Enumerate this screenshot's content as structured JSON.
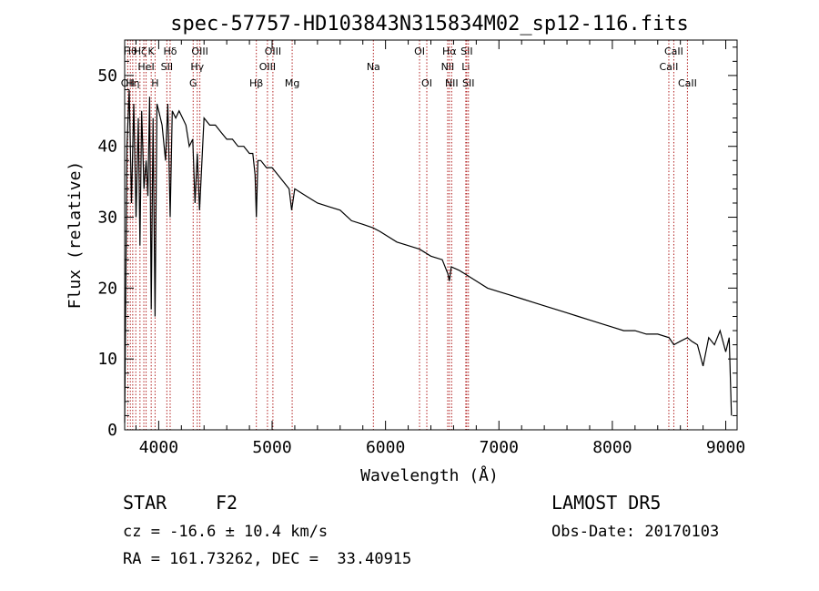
{
  "chart_data": {
    "type": "line",
    "title": "spec-57757-HD103843N315834M02_sp12-116.fits",
    "xlabel": "Wavelength (Å)",
    "ylabel": "Flux (relative)",
    "xlim": [
      3700,
      9100
    ],
    "ylim": [
      0,
      55
    ],
    "xticks": [
      4000,
      5000,
      6000,
      7000,
      8000,
      9000
    ],
    "yticks": [
      0,
      10,
      20,
      30,
      40,
      50
    ],
    "grid": false,
    "line_color": "#000000",
    "marker_color": "#b22222",
    "series": [
      {
        "x": [
          3700,
          3720,
          3740,
          3760,
          3780,
          3800,
          3820,
          3835,
          3850,
          3870,
          3889,
          3905,
          3920,
          3934,
          3950,
          3968,
          3985,
          4000,
          4030,
          4060,
          4080,
          4101,
          4120,
          4150,
          4180,
          4210,
          4240,
          4270,
          4300,
          4320,
          4340,
          4360,
          4400,
          4450,
          4500,
          4550,
          4600,
          4650,
          4700,
          4750,
          4800,
          4830,
          4850,
          4861,
          4875,
          4900,
          4950,
          5000,
          5050,
          5100,
          5150,
          5172,
          5200,
          5300,
          5400,
          5500,
          5600,
          5700,
          5800,
          5890,
          5950,
          6000,
          6100,
          6200,
          6300,
          6400,
          6500,
          6550,
          6563,
          6580,
          6650,
          6700,
          6800,
          6900,
          7000,
          7100,
          7200,
          7300,
          7400,
          7500,
          7600,
          7700,
          7800,
          7900,
          8000,
          8100,
          8200,
          8300,
          8400,
          8500,
          8542,
          8600,
          8662,
          8700,
          8750,
          8800,
          8850,
          8900,
          8950,
          9000,
          9030,
          9050
        ],
        "y": [
          1,
          40,
          48,
          32,
          46,
          30,
          44,
          26,
          45,
          34,
          38,
          33,
          47,
          17,
          44,
          16,
          46,
          45,
          43,
          38,
          46,
          30,
          45,
          44,
          45,
          44,
          43,
          40,
          41,
          32,
          39,
          31,
          44,
          43,
          43,
          42,
          41,
          41,
          40,
          40,
          39,
          39,
          36,
          30,
          38,
          38,
          37,
          37,
          36,
          35,
          34,
          31,
          34,
          33,
          32,
          31.5,
          31,
          29.5,
          29,
          28.5,
          28,
          27.5,
          26.5,
          26,
          25.5,
          24.5,
          24,
          22,
          21,
          23,
          22.5,
          22,
          21,
          20,
          19.5,
          19,
          18.5,
          18,
          17.5,
          17,
          16.5,
          16,
          15.5,
          15,
          14.5,
          14,
          14,
          13.5,
          13.5,
          13,
          12,
          12.5,
          13,
          12.5,
          12,
          9,
          13,
          12,
          14,
          11,
          13,
          2
        ]
      }
    ],
    "line_markers": [
      {
        "x": 3727,
        "label": "OII",
        "row": 2
      },
      {
        "x": 3750,
        "label": "Hθ",
        "row": 0
      },
      {
        "x": 3771,
        "label": "Hη",
        "row": 2
      },
      {
        "x": 3798,
        "label": "",
        "row": 0
      },
      {
        "x": 3835,
        "label": "Hζ",
        "row": 0
      },
      {
        "x": 3869,
        "label": "",
        "row": 0
      },
      {
        "x": 3889,
        "label": "HeI",
        "row": 1
      },
      {
        "x": 3934,
        "label": "K",
        "row": 0
      },
      {
        "x": 3968,
        "label": "H",
        "row": 2
      },
      {
        "x": 4072,
        "label": "SII",
        "row": 1
      },
      {
        "x": 4101,
        "label": "Hδ",
        "row": 0
      },
      {
        "x": 4304,
        "label": "G",
        "row": 2
      },
      {
        "x": 4340,
        "label": "Hγ",
        "row": 1
      },
      {
        "x": 4363,
        "label": "OIII",
        "row": 0
      },
      {
        "x": 4861,
        "label": "Hβ",
        "row": 2
      },
      {
        "x": 4959,
        "label": "OIII",
        "row": 1
      },
      {
        "x": 5007,
        "label": "OIII",
        "row": 0
      },
      {
        "x": 5177,
        "label": "Mg",
        "row": 2
      },
      {
        "x": 5893,
        "label": "Na",
        "row": 1
      },
      {
        "x": 6300,
        "label": "OI",
        "row": 0
      },
      {
        "x": 6364,
        "label": "OI",
        "row": 2
      },
      {
        "x": 6548,
        "label": "NII",
        "row": 1
      },
      {
        "x": 6563,
        "label": "Hα",
        "row": 0
      },
      {
        "x": 6583,
        "label": "NII",
        "row": 2
      },
      {
        "x": 6708,
        "label": "Li",
        "row": 1
      },
      {
        "x": 6716,
        "label": "SII",
        "row": 0
      },
      {
        "x": 6731,
        "label": "SII",
        "row": 2
      },
      {
        "x": 8498,
        "label": "CaII",
        "row": 1
      },
      {
        "x": 8542,
        "label": "CaII",
        "row": 0
      },
      {
        "x": 8662,
        "label": "CaII",
        "row": 2
      }
    ]
  },
  "footer": {
    "class_label": "STAR",
    "subclass": "F2",
    "survey": "LAMOST DR5",
    "velocity": "cz = -16.6 ± 10.4 km/s",
    "obs_date": "Obs-Date: 20170103",
    "coords": "RA = 161.73262, DEC =  33.40915"
  }
}
